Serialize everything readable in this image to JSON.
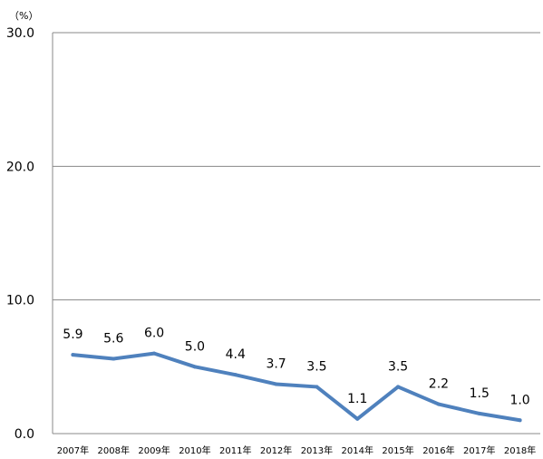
{
  "chart_data": {
    "type": "line",
    "unit_label": "（%）",
    "categories": [
      "2007年",
      "2008年",
      "2009年",
      "2010年",
      "2011年",
      "2012年",
      "2013年",
      "2014年",
      "2015年",
      "2016年",
      "2017年",
      "2018年"
    ],
    "series": [
      {
        "values": [
          5.9,
          5.6,
          6.0,
          5.0,
          4.4,
          3.7,
          3.5,
          1.1,
          3.5,
          2.2,
          1.5,
          1.0
        ],
        "data_labels": [
          "5.9",
          "5.6",
          "6.0",
          "5.0",
          "4.4",
          "3.7",
          "3.5",
          "1.1",
          "3.5",
          "2.2",
          "1.5",
          "1.0"
        ],
        "color": "#4f81bd"
      }
    ],
    "y_ticks": [
      "0.0",
      "10.0",
      "20.0",
      "30.0"
    ],
    "y_tick_values": [
      0,
      10,
      20,
      30
    ],
    "ylim": [
      0,
      30
    ],
    "grid": true,
    "legend": "none"
  }
}
